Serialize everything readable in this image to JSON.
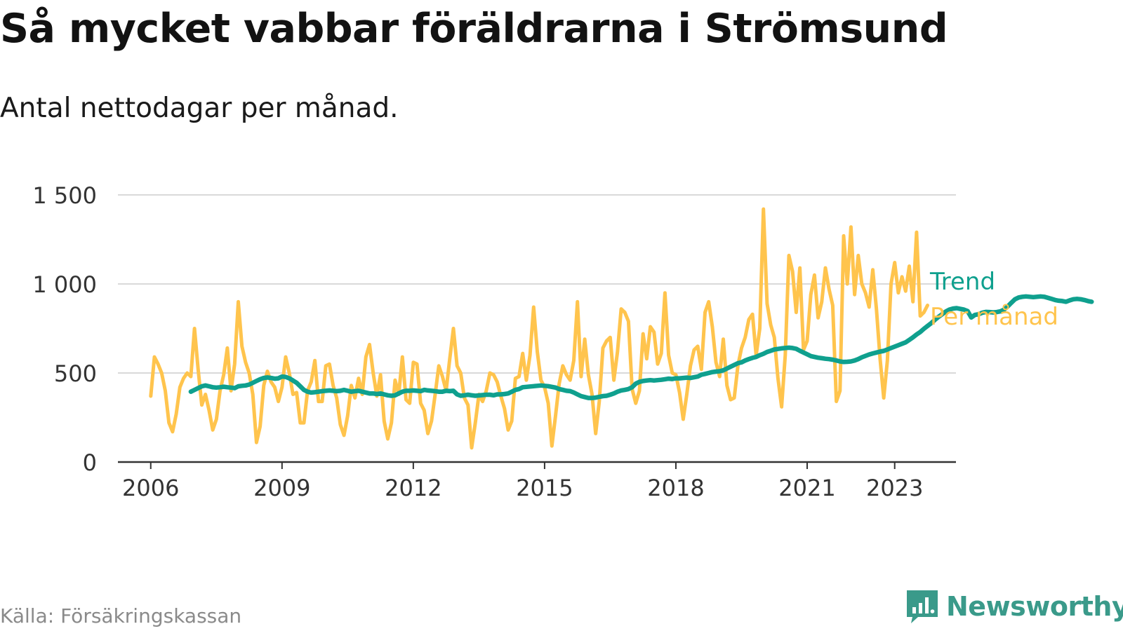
{
  "header": {
    "title": "Så mycket vabbar föräldrarna i Strömsund",
    "subtitle": "Antal nettodagar per månad."
  },
  "footer": {
    "source": "Källa: Försäkringskassan",
    "brand": "Newsworthy",
    "brand_color": "#3a9a8a"
  },
  "colors": {
    "monthly": "#ffc44d",
    "trend": "#0fa08e",
    "grid": "#d9d9d9",
    "axis": "#333333",
    "text": "#333333"
  },
  "chart_data": {
    "type": "line",
    "title": "Så mycket vabbar föräldrarna i Strömsund",
    "subtitle": "Antal nettodagar per månad.",
    "xlabel": "",
    "ylabel": "",
    "x_unit": "year (decimal, monthly steps)",
    "xlim": [
      2005.25,
      2024.4
    ],
    "ylim": [
      0,
      1500
    ],
    "grid": true,
    "y_ticks": [
      0,
      500,
      1000,
      1500
    ],
    "y_tick_labels": [
      "0",
      "500",
      "1 000",
      "1 500"
    ],
    "x_ticks": [
      2006,
      2009,
      2012,
      2015,
      2018,
      2021,
      2023
    ],
    "x_tick_labels": [
      "2006",
      "2009",
      "2012",
      "2015",
      "2018",
      "2021",
      "2023"
    ],
    "legend": "inline-right",
    "series": [
      {
        "name": "Per månad",
        "start": 2006.0,
        "step": 0.0833333,
        "values": [
          370,
          590,
          550,
          500,
          400,
          220,
          170,
          270,
          420,
          470,
          500,
          480,
          750,
          520,
          320,
          380,
          290,
          180,
          240,
          400,
          490,
          640,
          400,
          550,
          900,
          650,
          560,
          500,
          380,
          110,
          200,
          430,
          510,
          450,
          420,
          340,
          420,
          590,
          500,
          380,
          390,
          220,
          220,
          400,
          450,
          570,
          340,
          340,
          540,
          550,
          430,
          360,
          210,
          150,
          260,
          430,
          360,
          470,
          380,
          590,
          660,
          500,
          370,
          490,
          230,
          130,
          220,
          460,
          380,
          590,
          350,
          330,
          560,
          550,
          330,
          290,
          160,
          230,
          380,
          540,
          480,
          400,
          580,
          750,
          540,
          500,
          360,
          320,
          80,
          220,
          380,
          340,
          400,
          500,
          490,
          450,
          370,
          300,
          180,
          230,
          470,
          480,
          610,
          460,
          600,
          870,
          620,
          460,
          420,
          330,
          90,
          260,
          440,
          540,
          490,
          460,
          570,
          900,
          480,
          690,
          490,
          380,
          160,
          340,
          640,
          680,
          700,
          460,
          620,
          860,
          840,
          790,
          410,
          330,
          400,
          720,
          580,
          760,
          730,
          550,
          610,
          950,
          600,
          500,
          490,
          390,
          240,
          380,
          540,
          630,
          650,
          520,
          840,
          900,
          760,
          560,
          480,
          690,
          430,
          350,
          360,
          540,
          640,
          700,
          800,
          830,
          600,
          750,
          1420,
          890,
          770,
          700,
          470,
          310,
          600,
          1160,
          1070,
          840,
          1090,
          630,
          680,
          940,
          1050,
          810,
          900,
          1090,
          970,
          880,
          340,
          400,
          1270,
          1000,
          1320,
          940,
          1160,
          1000,
          950,
          870,
          1080,
          860,
          580,
          360,
          570,
          1000,
          1120,
          950,
          1040,
          960,
          1100,
          900,
          1290,
          820,
          840,
          880
        ]
      },
      {
        "name": "Trend",
        "start": 2006.9167,
        "step": 0.0833333,
        "values": [
          395,
          405,
          415,
          425,
          430,
          425,
          420,
          418,
          420,
          423,
          420,
          418,
          415,
          425,
          428,
          430,
          435,
          445,
          455,
          465,
          472,
          475,
          472,
          468,
          470,
          480,
          478,
          470,
          458,
          445,
          425,
          405,
          395,
          390,
          392,
          395,
          398,
          400,
          402,
          400,
          398,
          400,
          405,
          400,
          395,
          398,
          400,
          395,
          390,
          385,
          385,
          382,
          385,
          380,
          375,
          372,
          375,
          385,
          395,
          400,
          400,
          402,
          400,
          398,
          405,
          402,
          400,
          398,
          395,
          395,
          400,
          398,
          400,
          380,
          372,
          375,
          378,
          375,
          372,
          374,
          376,
          378,
          378,
          375,
          380,
          380,
          382,
          385,
          395,
          405,
          410,
          420,
          422,
          424,
          426,
          428,
          430,
          428,
          426,
          422,
          418,
          410,
          405,
          400,
          398,
          390,
          380,
          370,
          365,
          360,
          360,
          362,
          366,
          370,
          372,
          378,
          385,
          395,
          402,
          405,
          410,
          420,
          440,
          450,
          455,
          458,
          460,
          458,
          460,
          462,
          465,
          468,
          466,
          470,
          470,
          472,
          474,
          472,
          476,
          480,
          490,
          495,
          500,
          505,
          508,
          510,
          515,
          525,
          535,
          545,
          555,
          560,
          570,
          578,
          585,
          590,
          600,
          608,
          618,
          625,
          632,
          635,
          638,
          640,
          642,
          640,
          636,
          625,
          615,
          605,
          595,
          590,
          586,
          583,
          580,
          578,
          575,
          570,
          565,
          562,
          563,
          565,
          570,
          578,
          588,
          596,
          604,
          610,
          615,
          620,
          624,
          632,
          640,
          648,
          656,
          664,
          672,
          686,
          700,
          716,
          730,
          748,
          764,
          780,
          798,
          815,
          830,
          845,
          856,
          862,
          864,
          860,
          856,
          848,
          812,
          826,
          830,
          838,
          843,
          842,
          840,
          842,
          846,
          856,
          874,
          895,
          914,
          924,
          928,
          930,
          928,
          926,
          928,
          930,
          928,
          922,
          916,
          910,
          906,
          904,
          900,
          908,
          914,
          916,
          914,
          910,
          904,
          900
        ]
      }
    ]
  }
}
